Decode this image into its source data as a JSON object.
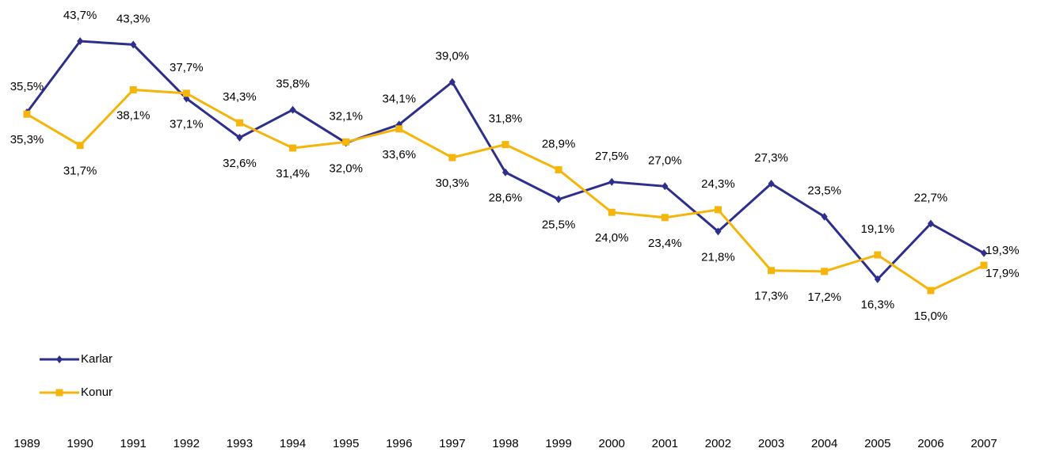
{
  "chart_data": {
    "type": "line",
    "categories": [
      "1989",
      "1990",
      "1991",
      "1992",
      "1993",
      "1994",
      "1995",
      "1996",
      "1997",
      "1998",
      "1999",
      "2000",
      "2001",
      "2002",
      "2003",
      "2004",
      "2005",
      "2006",
      "2007"
    ],
    "series": [
      {
        "name": "Karlar",
        "color": "#2e2e8c",
        "marker": "diamond",
        "values": [
          35.5,
          43.7,
          43.3,
          37.1,
          32.6,
          35.8,
          32.0,
          34.1,
          39.0,
          28.6,
          25.5,
          27.5,
          27.0,
          21.8,
          27.3,
          23.5,
          16.3,
          22.7,
          19.3
        ],
        "value_labels": [
          "35,5%",
          "43,7%",
          "43,3%",
          "37,1%",
          "32,6%",
          "35,8%",
          "32,0%",
          "34,1%",
          "39,0%",
          "28,6%",
          "25,5%",
          "27,5%",
          "27,0%",
          "21,8%",
          "27,3%",
          "23,5%",
          "16,3%",
          "22,7%",
          "19,3%"
        ]
      },
      {
        "name": "Konur",
        "color": "#f5b50a",
        "marker": "square",
        "values": [
          35.3,
          31.7,
          38.1,
          37.7,
          34.3,
          31.4,
          32.1,
          33.6,
          30.3,
          31.8,
          28.9,
          24.0,
          23.4,
          24.3,
          17.3,
          17.2,
          19.1,
          15.0,
          17.9
        ],
        "value_labels": [
          "35,3%",
          "31,7%",
          "38,1%",
          "37,7%",
          "34,3%",
          "31,4%",
          "32,1%",
          "33,6%",
          "30,3%",
          "31,8%",
          "28,9%",
          "24,0%",
          "23,4%",
          "24,3%",
          "17,3%",
          "17,2%",
          "19,1%",
          "15,0%",
          "17,9%"
        ]
      }
    ],
    "legend": "bottom-left"
  }
}
